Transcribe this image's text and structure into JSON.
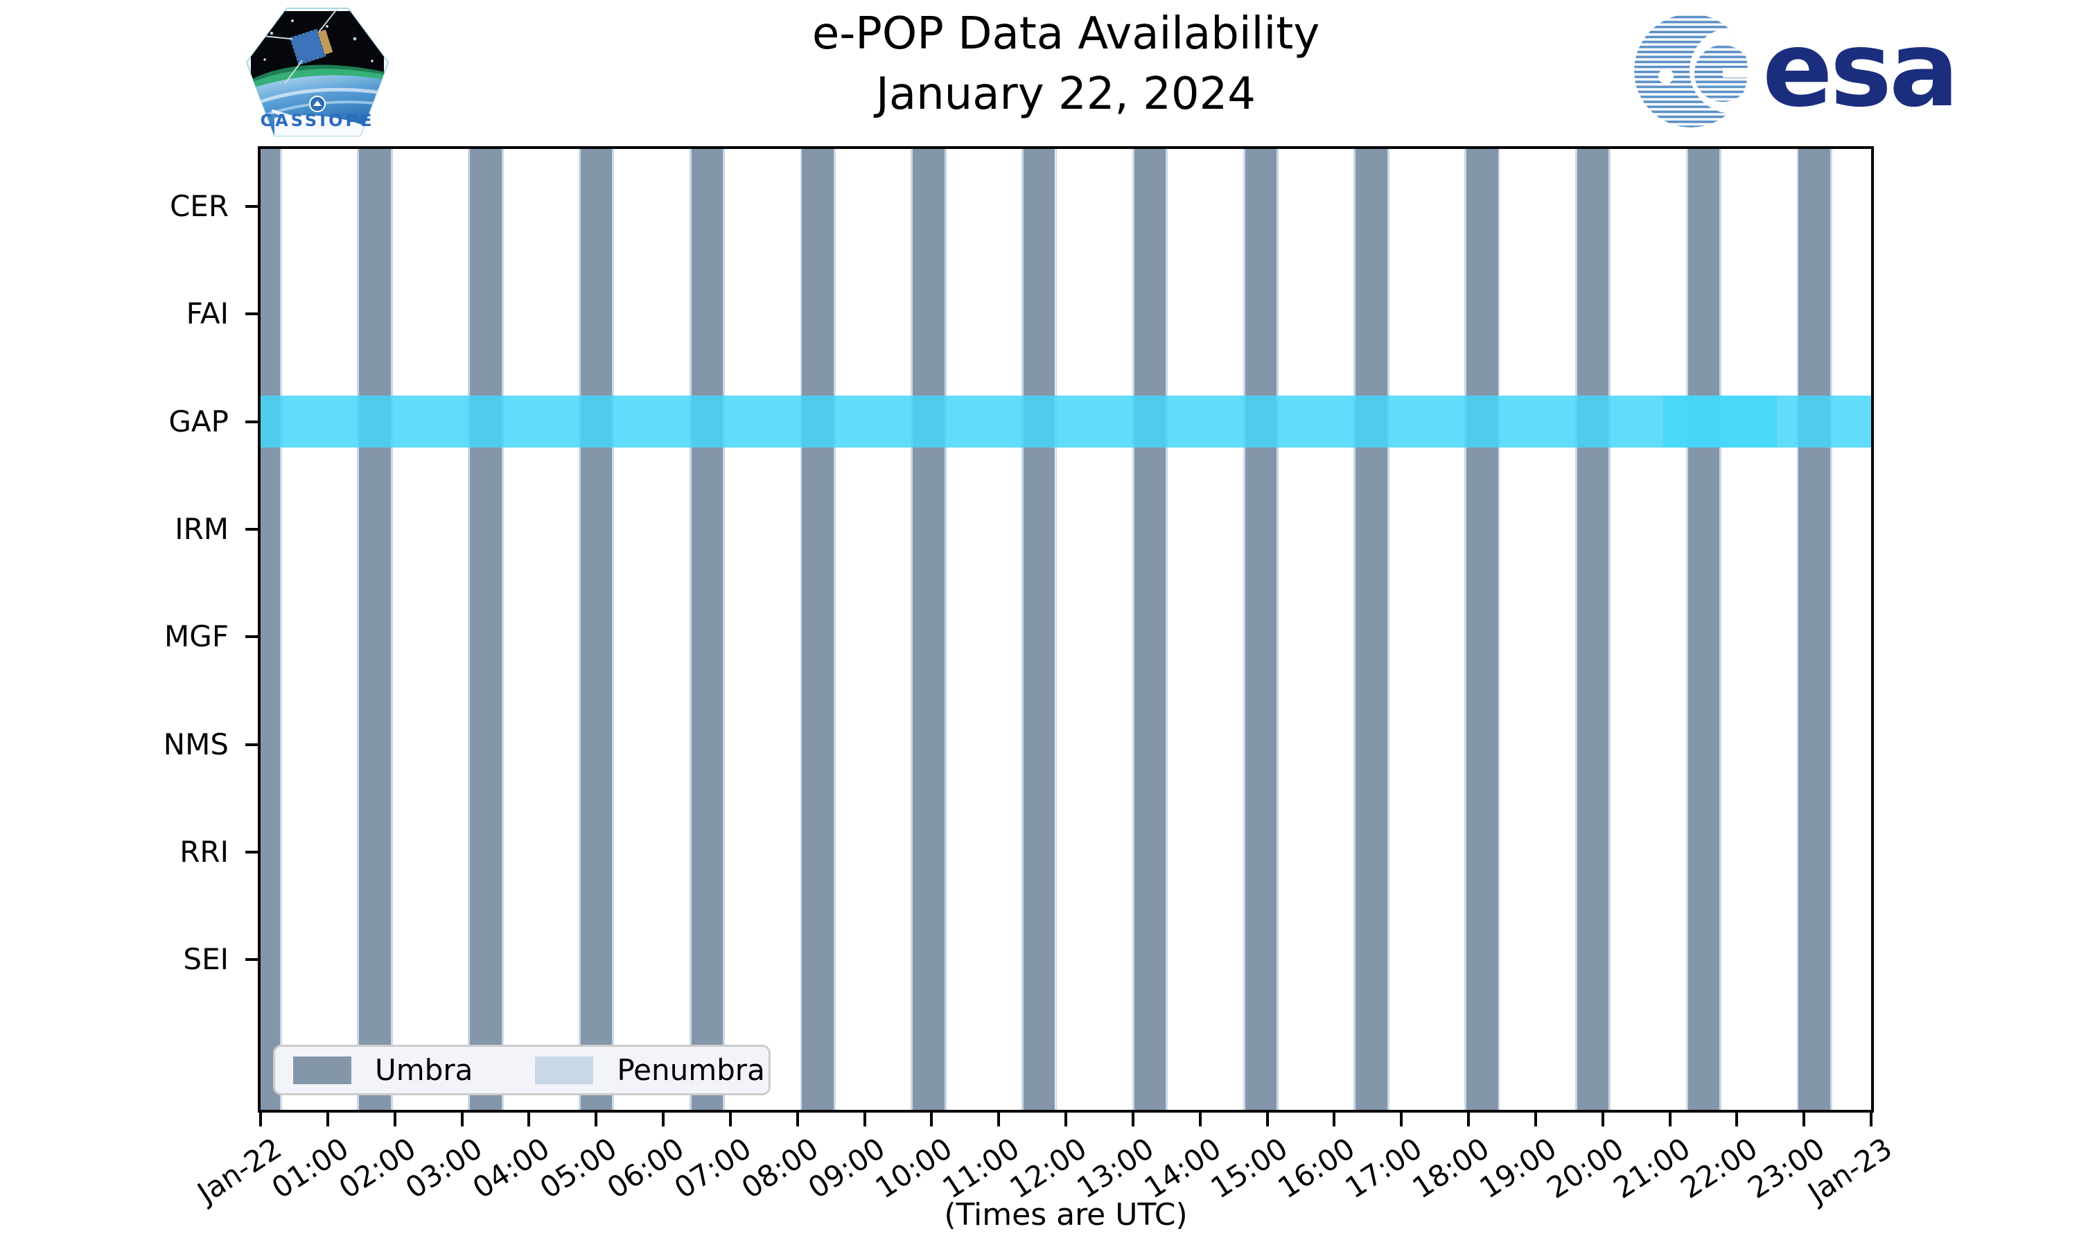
{
  "header": {
    "title_line1": "e-POP Data Availability",
    "title_line2": "January 22, 2024",
    "cassiope_patch_label": "CASSIOPE",
    "esa_logo_text": "esa"
  },
  "chart_data": {
    "type": "timeline",
    "title": "e-POP Data Availability",
    "subtitle": "January 22, 2024",
    "date_shown": "January 22, 2024",
    "y_categories": [
      "CER",
      "FAI",
      "GAP",
      "IRM",
      "MGF",
      "NMS",
      "RRI",
      "SEI"
    ],
    "x_caption": "(Times are UTC)",
    "x_range_hours": [
      0,
      24
    ],
    "x_tick_labels": [
      "Jan-22",
      "01:00",
      "02:00",
      "03:00",
      "04:00",
      "05:00",
      "06:00",
      "07:00",
      "08:00",
      "09:00",
      "10:00",
      "11:00",
      "12:00",
      "13:00",
      "14:00",
      "15:00",
      "16:00",
      "17:00",
      "18:00",
      "19:00",
      "20:00",
      "21:00",
      "22:00",
      "23:00",
      "Jan-23"
    ],
    "umbra_intervals_hours": [
      [
        -0.19,
        0.29
      ],
      [
        1.47,
        1.94
      ],
      [
        3.12,
        3.59
      ],
      [
        4.77,
        5.24
      ],
      [
        6.42,
        6.89
      ],
      [
        8.07,
        8.54
      ],
      [
        9.72,
        10.19
      ],
      [
        11.37,
        11.84
      ],
      [
        13.02,
        13.49
      ],
      [
        14.67,
        15.14
      ],
      [
        16.32,
        16.79
      ],
      [
        17.97,
        18.44
      ],
      [
        19.62,
        20.09
      ],
      [
        21.27,
        21.74
      ],
      [
        22.92,
        23.39
      ]
    ],
    "penumbra_margin_hours": 0.03,
    "availability": [
      {
        "instrument": "GAP",
        "intervals_hours": [
          [
            0.0,
            24.0
          ],
          [
            20.9,
            22.6
          ]
        ]
      }
    ],
    "legend": {
      "items": [
        {
          "label": "Umbra",
          "color_key": "umbra"
        },
        {
          "label": "Penumbra",
          "color_key": "penumbra"
        }
      ]
    },
    "colors": {
      "umbra": "#8496AA",
      "penumbra": "#C9D8E6",
      "availability_fill": "rgba(69,214,249,0.85)",
      "axis": "#000000",
      "legend_bg": "#F2F4F9",
      "legend_border": "#CCCCCC"
    }
  }
}
